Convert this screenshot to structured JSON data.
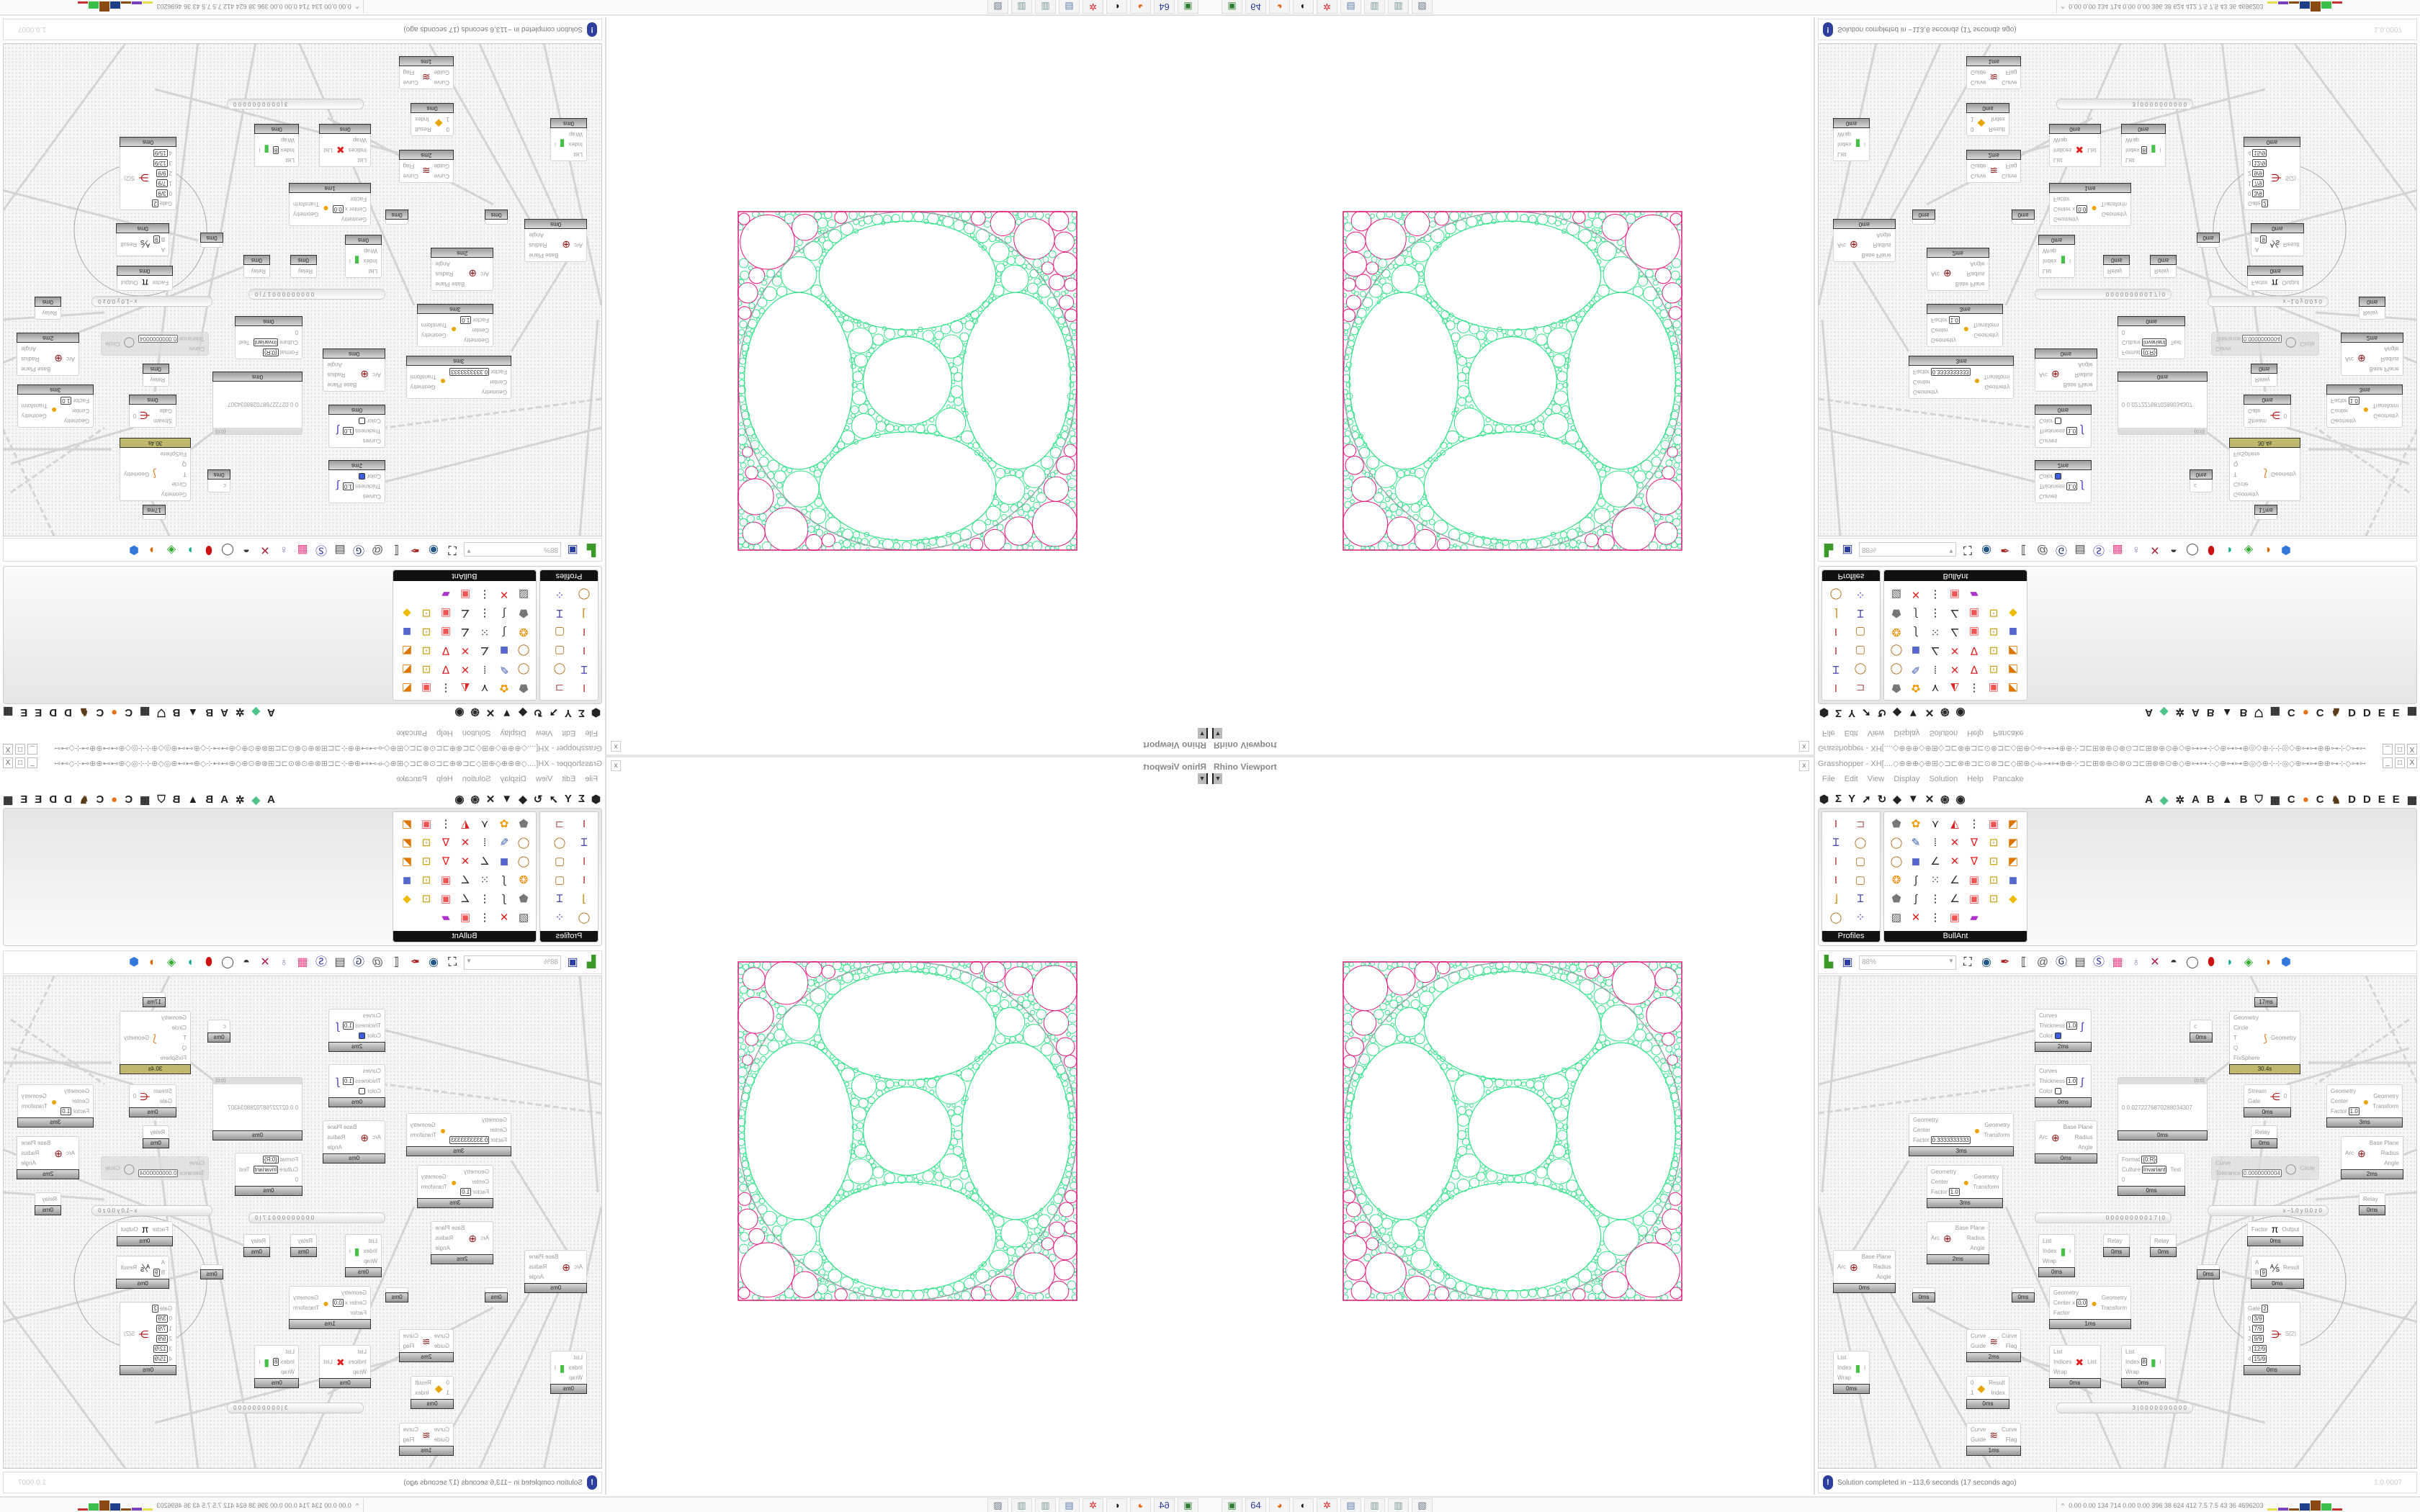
{
  "viewport": {
    "title": "Rhino Viewport",
    "close_label": "x",
    "dropdown_icon": "chevron-down-icon",
    "colors": {
      "inner_packing": "#34e28a",
      "corner_packing": "#e4177f",
      "frame": "#d81b7a",
      "outline": "#9a9aa8"
    }
  },
  "grasshopper": {
    "title": "Grasshopper - XH[....◇⊕⊕⊕◇⊕⊞◇⊐⊏⊗⊕⊐⊏⊙⊗⊐⊏◇⊞⊕◇⟛⊶⊶⊕⊕⊹⊐⊏⊞⊗⊕⊙⊗⊙⊐⊏⊞⊗⊕⊙⊕◇⊕⊶⊶⊹◇⊕⊶⊶⊕◎◇⊕⊹⊹◎◇⊕⊶⊶⊕⊕⊶⊹◇⊶⊶⊕⊐⊏⊞⊗⊙⊞⊙⊗⊙...",
    "window_buttons": [
      "_",
      "□",
      "X"
    ],
    "menu": [
      "File",
      "Edit",
      "View",
      "Display",
      "Solution",
      "Help",
      "Pancake"
    ],
    "tab_icons": [
      {
        "icon": "hexagon-icon",
        "glyph": "⬢"
      },
      {
        "icon": "sigma-icon",
        "glyph": "Σ"
      },
      {
        "icon": "antenna-icon",
        "glyph": "Y"
      },
      {
        "icon": "arrow-icon",
        "glyph": "➚"
      },
      {
        "icon": "hook-icon",
        "glyph": "↻"
      },
      {
        "icon": "cube-icon",
        "glyph": "◆"
      },
      {
        "icon": "funnel-icon",
        "glyph": "▼"
      },
      {
        "icon": "scissors-icon",
        "glyph": "✕"
      },
      {
        "icon": "spiral-icon",
        "glyph": "֍"
      },
      {
        "icon": "eye-icon",
        "glyph": "◉"
      }
    ],
    "plugin_tabs": [
      {
        "label": "A",
        "icon": "letter-a-icon"
      },
      {
        "label": "◆",
        "icon": "leaf-icon",
        "color": "#4fc28a"
      },
      {
        "label": "✲",
        "icon": "gear-icon"
      },
      {
        "label": "A",
        "icon": "letter-a-icon"
      },
      {
        "label": "B",
        "icon": "letter-b-icon"
      },
      {
        "label": "▲",
        "icon": "mountain-icon"
      },
      {
        "label": "B",
        "icon": "letter-b-icon"
      },
      {
        "label": "⛉",
        "icon": "shield-icon"
      },
      {
        "label": "▦",
        "icon": "grid-icon"
      },
      {
        "label": "C",
        "icon": "letter-c-icon"
      },
      {
        "label": "●",
        "icon": "orange-circle-icon",
        "color": "#e8731e"
      },
      {
        "label": "C",
        "icon": "letter-c-icon"
      },
      {
        "label": "♞",
        "icon": "bird-icon",
        "color": "#5a3a1a"
      },
      {
        "label": "D",
        "icon": "letter-d-icon"
      },
      {
        "label": "D",
        "icon": "letter-d-icon"
      },
      {
        "label": "E",
        "icon": "letter-e-icon"
      },
      {
        "label": "E",
        "icon": "letter-e-icon"
      },
      {
        "label": "▦",
        "icon": "grid-icon"
      }
    ],
    "ribbon": {
      "profiles": {
        "label": "Profiles",
        "icons": [
          "i-beam-icon",
          "channel-icon",
          "i-section-icon",
          "ring-icon",
          "i-beam-icon",
          "box-section-icon",
          "i-beam-icon",
          "box-section-icon",
          "angle-icon",
          "i-section-icon",
          "ring-icon",
          "points-icon"
        ]
      },
      "bullant": {
        "label": "BullAnt",
        "icons": [
          "rock-icon",
          "flower-icon",
          "fork-icon",
          "triangle-icon",
          "ladder-icon",
          "frame-icon",
          "panel-icon",
          "ring-icon",
          "brush-icon",
          "grid-lines-icon",
          "cross-icon",
          "v-icon",
          "lock-icon",
          "panel-icon",
          "ring-icon",
          "cube-icon",
          "polyline-icon",
          "cross-icon",
          "v-icon",
          "lock-icon",
          "panel-icon",
          "ball-icon",
          "curve-icon",
          "nodes-icon",
          "polyline-icon",
          "frame-icon",
          "lock-icon",
          "cube-icon",
          "rock-icon",
          "curve-icon",
          "ladder-icon",
          "polyline-icon",
          "frame-icon",
          "lock-icon",
          "gem-icon",
          "picture-icon",
          "cross-icon",
          "ladder-icon",
          "frame-icon",
          "rainbow-icon"
        ]
      }
    },
    "toolbar": {
      "open_icon": "folder-open-icon",
      "save_icon": "save-icon",
      "zoom": "88%",
      "icons": [
        "zoom-extents-icon",
        "eye-icon",
        "pen-icon",
        "bracket-icon",
        "email-icon",
        "gha-icon",
        "window-icon",
        "search-icon",
        "package-icon",
        "bulb-icon",
        "wires-icon",
        "bucket-icon",
        "ring-icon",
        "red-ring-icon",
        "teal-icon",
        "green-icon",
        "half-ball-icon",
        "blue-ball-icon"
      ]
    },
    "nodes": [
      {
        "name": "custom-preview",
        "inputs": [
          {
            "label": "Curves"
          },
          {
            "label": "Thickness",
            "value": "1.0"
          },
          {
            "label": "Color",
            "swatch": "#3d5ee0"
          }
        ],
        "outputs": [],
        "icon": "brush-stroke-icon",
        "time": "2ms"
      },
      {
        "name": "custom-preview",
        "inputs": [
          {
            "label": "Curves"
          },
          {
            "label": "Thickness",
            "value": "1.0"
          },
          {
            "label": "Color",
            "swatch": "#ffffff"
          }
        ],
        "outputs": [],
        "icon": "brush-stroke-icon",
        "time": "0ms"
      },
      {
        "name": "scale",
        "inputs": [
          {
            "label": "Geometry"
          },
          {
            "label": "Center"
          },
          {
            "label": "Factor",
            "value": "0.3333333333"
          }
        ],
        "outputs": [
          {
            "label": "Geometry"
          },
          {
            "label": "Transform"
          }
        ],
        "icon": "scale-icon",
        "time": "3ms"
      },
      {
        "name": "scale",
        "inputs": [
          {
            "label": "Geometry"
          },
          {
            "label": "Center"
          },
          {
            "label": "Factor",
            "value": "1.0"
          }
        ],
        "outputs": [
          {
            "label": "Geometry"
          },
          {
            "label": "Transform"
          }
        ],
        "icon": "scale-icon",
        "time": "3ms"
      },
      {
        "name": "deconstruct-arc",
        "inputs": [
          {
            "label": "Arc"
          }
        ],
        "outputs": [
          {
            "label": "Base Plane"
          },
          {
            "label": "Radius"
          },
          {
            "label": "Angle"
          }
        ],
        "icon": "arc-icon",
        "time": "0ms"
      },
      {
        "name": "panel",
        "header": "{0;0}",
        "inputs": [
          {
            "label": "0  0.0272276870288034307"
          }
        ],
        "outputs": [],
        "icon": "",
        "time": "0ms"
      },
      {
        "name": "timer",
        "inputs": [],
        "outputs": [],
        "icon": "",
        "time": "17ms"
      },
      {
        "name": "kangaroo-solver",
        "inputs": [
          {
            "label": "Geometry"
          },
          {
            "label": "Circle"
          },
          {
            "label": "T"
          },
          {
            "label": "Q"
          },
          {
            "label": "FixSphere"
          }
        ],
        "outputs": [
          {
            "label": "Geometry"
          }
        ],
        "icon": "kangaroo-icon",
        "time": "30.4s",
        "footer_color": "#bdb86c"
      },
      {
        "name": "param-c",
        "inputs": [
          {
            "label": "c"
          }
        ],
        "outputs": [],
        "icon": "",
        "time": "0ms"
      },
      {
        "name": "stream-gate",
        "inputs": [
          {
            "label": "Stream"
          },
          {
            "label": "Gate"
          }
        ],
        "outputs": [
          {
            "label": "0"
          }
        ],
        "icon": "stream-icon",
        "time": "0ms"
      },
      {
        "name": "relay",
        "inputs": [
          {
            "label": "Relay"
          }
        ],
        "outputs": [],
        "icon": "",
        "time": "0ms"
      },
      {
        "name": "curve-to-circle",
        "disabled": true,
        "inputs": [
          {
            "label": "Curve"
          },
          {
            "label": "Tolerance",
            "value": "0.0000000004"
          }
        ],
        "outputs": [
          {
            "label": "Circle"
          }
        ],
        "icon": "circle-icon"
      },
      {
        "name": "scale",
        "inputs": [
          {
            "label": "Geometry"
          },
          {
            "label": "Center"
          },
          {
            "label": "Factor",
            "value": "1.0"
          }
        ],
        "outputs": [
          {
            "label": "Geometry"
          },
          {
            "label": "Transform"
          }
        ],
        "icon": "scale-icon",
        "time": "3ms"
      },
      {
        "name": "deconstruct-arc",
        "inputs": [
          {
            "label": "Arc"
          }
        ],
        "outputs": [
          {
            "label": "Base Plane"
          },
          {
            "label": "Radius"
          },
          {
            "label": "Angle"
          }
        ],
        "icon": "arc-icon",
        "time": "2ms"
      },
      {
        "name": "format",
        "inputs": [
          {
            "label": "Format",
            "value": "{0:R}"
          },
          {
            "label": "Culture",
            "value": "Invariant"
          },
          {
            "label": "0"
          }
        ],
        "outputs": [
          {
            "label": "Text"
          }
        ],
        "icon": "",
        "time": "0ms"
      },
      {
        "name": "list-item",
        "inputs": [
          {
            "label": "List"
          },
          {
            "label": "Index"
          },
          {
            "label": "Wrap"
          }
        ],
        "outputs": [
          {
            "label": "i"
          }
        ],
        "icon": "list-item-icon",
        "time": "0ms"
      },
      {
        "name": "relay",
        "inputs": [
          {
            "label": "Relay"
          }
        ],
        "outputs": [],
        "icon": "",
        "time": "0ms"
      },
      {
        "name": "deconstruct-arc",
        "inputs": [
          {
            "label": "Arc"
          }
        ],
        "outputs": [
          {
            "label": "Base Plane"
          },
          {
            "label": "Radius"
          },
          {
            "label": "Angle"
          }
        ],
        "icon": "arc-icon",
        "time": "0ms"
      },
      {
        "name": "deconstruct-arc",
        "inputs": [
          {
            "label": "Arc"
          }
        ],
        "outputs": [
          {
            "label": "Base Plane"
          },
          {
            "label": "Radius"
          },
          {
            "label": "Angle"
          }
        ],
        "icon": "arc-icon",
        "time": "2ms"
      },
      {
        "name": "relay-blank",
        "inputs": [],
        "outputs": [],
        "icon": "",
        "time": "0ms"
      },
      {
        "name": "relay-blank",
        "inputs": [],
        "outputs": [],
        "icon": "",
        "time": "0ms"
      },
      {
        "name": "scale-xyz",
        "inputs": [
          {
            "label": "Geometry"
          },
          {
            "label": "Center x",
            "value": "0.0"
          },
          {
            "label": "Factor"
          }
        ],
        "outputs": [
          {
            "label": "Geometry"
          },
          {
            "label": "Transform"
          }
        ],
        "icon": "scale-icon",
        "time": "1ms"
      },
      {
        "name": "flip-curve",
        "inputs": [
          {
            "label": "Curve"
          },
          {
            "label": "Guide"
          }
        ],
        "outputs": [
          {
            "label": "Curve"
          },
          {
            "label": "Flag"
          }
        ],
        "icon": "flip-icon",
        "time": "2ms"
      },
      {
        "name": "list-item",
        "inputs": [
          {
            "label": "List"
          },
          {
            "label": "Index"
          },
          {
            "label": "Wrap"
          }
        ],
        "outputs": [
          {
            "label": "i"
          }
        ],
        "icon": "list-item-icon",
        "time": "0ms"
      },
      {
        "name": "dispatch",
        "inputs": [
          {
            "label": "0"
          },
          {
            "label": "1"
          }
        ],
        "outputs": [
          {
            "label": "Result"
          },
          {
            "label": "Index"
          }
        ],
        "icon": "warning-icon",
        "time": "0ms"
      },
      {
        "name": "flip-curve",
        "inputs": [
          {
            "label": "Curve"
          },
          {
            "label": "Guide"
          }
        ],
        "outputs": [
          {
            "label": "Curve"
          },
          {
            "label": "Flag"
          }
        ],
        "icon": "flip-icon",
        "time": "1ms"
      },
      {
        "name": "cull-index",
        "inputs": [
          {
            "label": "List"
          },
          {
            "label": "Indices"
          },
          {
            "label": "Wrap"
          }
        ],
        "outputs": [
          {
            "label": "List"
          }
        ],
        "icon": "cull-icon",
        "time": "0ms"
      },
      {
        "name": "relay",
        "inputs": [
          {
            "label": "Relay"
          }
        ],
        "outputs": [],
        "icon": "",
        "time": "0ms"
      },
      {
        "name": "relay",
        "inputs": [
          {
            "label": "Relay"
          }
        ],
        "outputs": [],
        "icon": "",
        "time": "0ms"
      },
      {
        "name": "relay-blank",
        "inputs": [],
        "outputs": [],
        "icon": "",
        "time": "0ms"
      },
      {
        "name": "pi",
        "inputs": [
          {
            "label": "Factor"
          }
        ],
        "outputs": [
          {
            "label": "Output"
          }
        ],
        "icon": "pi-icon",
        "time": "0ms"
      },
      {
        "name": "division",
        "inputs": [
          {
            "label": "A"
          },
          {
            "label": "B",
            "value": "9"
          }
        ],
        "outputs": [
          {
            "label": "Result"
          }
        ],
        "icon": "divide-icon",
        "time": "0ms"
      },
      {
        "name": "stream-filter",
        "inputs": [
          {
            "label": "Gate",
            "value": "2"
          },
          {
            "label": "0",
            "value": "3/9"
          },
          {
            "label": "1",
            "value": "7/9"
          },
          {
            "label": "2",
            "value": "9/9"
          },
          {
            "label": "3",
            "value": "12/9"
          },
          {
            "label": "4",
            "value": "15/9"
          }
        ],
        "outputs": [
          {
            "label": "S(2)"
          }
        ],
        "icon": "filter-icon",
        "time": "0ms"
      },
      {
        "name": "list-item",
        "inputs": [
          {
            "label": "List"
          },
          {
            "label": "Index",
            "value": "8"
          },
          {
            "label": "Wrap"
          }
        ],
        "outputs": [
          {
            "label": "i"
          }
        ],
        "icon": "list-item-icon",
        "time": "0ms"
      }
    ],
    "sliders": [
      {
        "digits": "0 0 0 0 0 0 0 0 0 1 7 | 0"
      },
      {
        "digits": "x −1.0  y 0.0  z 0"
      },
      {
        "digits": "3 | 0 0 0 0 0 0 0 0 0 0"
      }
    ],
    "status": {
      "icon": "info-icon",
      "message": "Solution completed in ~113,6 seconds (17 seconds ago)",
      "version": "1.0.0007"
    }
  },
  "taskbar": {
    "apps": [
      {
        "icon": "terminal-icon",
        "glyph": "▣",
        "color": "#2f7d2f"
      },
      {
        "icon": "floppy-64-icon",
        "glyph": "64",
        "color": "#2a3da0"
      },
      {
        "icon": "firefox-icon",
        "glyph": "◕",
        "color": "#e8661c"
      },
      {
        "icon": "inkscape-icon",
        "glyph": "◐",
        "color": "#111"
      },
      {
        "icon": "settings-gear-icon",
        "glyph": "✲",
        "color": "#d22"
      },
      {
        "icon": "calculator-icon",
        "glyph": "▤",
        "color": "#5a7fb0"
      },
      {
        "icon": "notepad-icon",
        "glyph": "▥",
        "color": "#7a9a9a"
      },
      {
        "icon": "notepad-icon",
        "glyph": "▥",
        "color": "#7a9a9a"
      },
      {
        "icon": "printer-icon",
        "glyph": "▧",
        "color": "#6d7a90"
      }
    ],
    "stats": "0.00 0.00 134 714 0.00 0.00 396  38  624  412  7.5  7.5  43  36  4696203",
    "graph_colors": [
      "#e6e04a",
      "#7a3fbf",
      "#8b4a12",
      "#1e3f8a",
      "#8b4a12",
      "#39c04a",
      "#c83030"
    ]
  }
}
